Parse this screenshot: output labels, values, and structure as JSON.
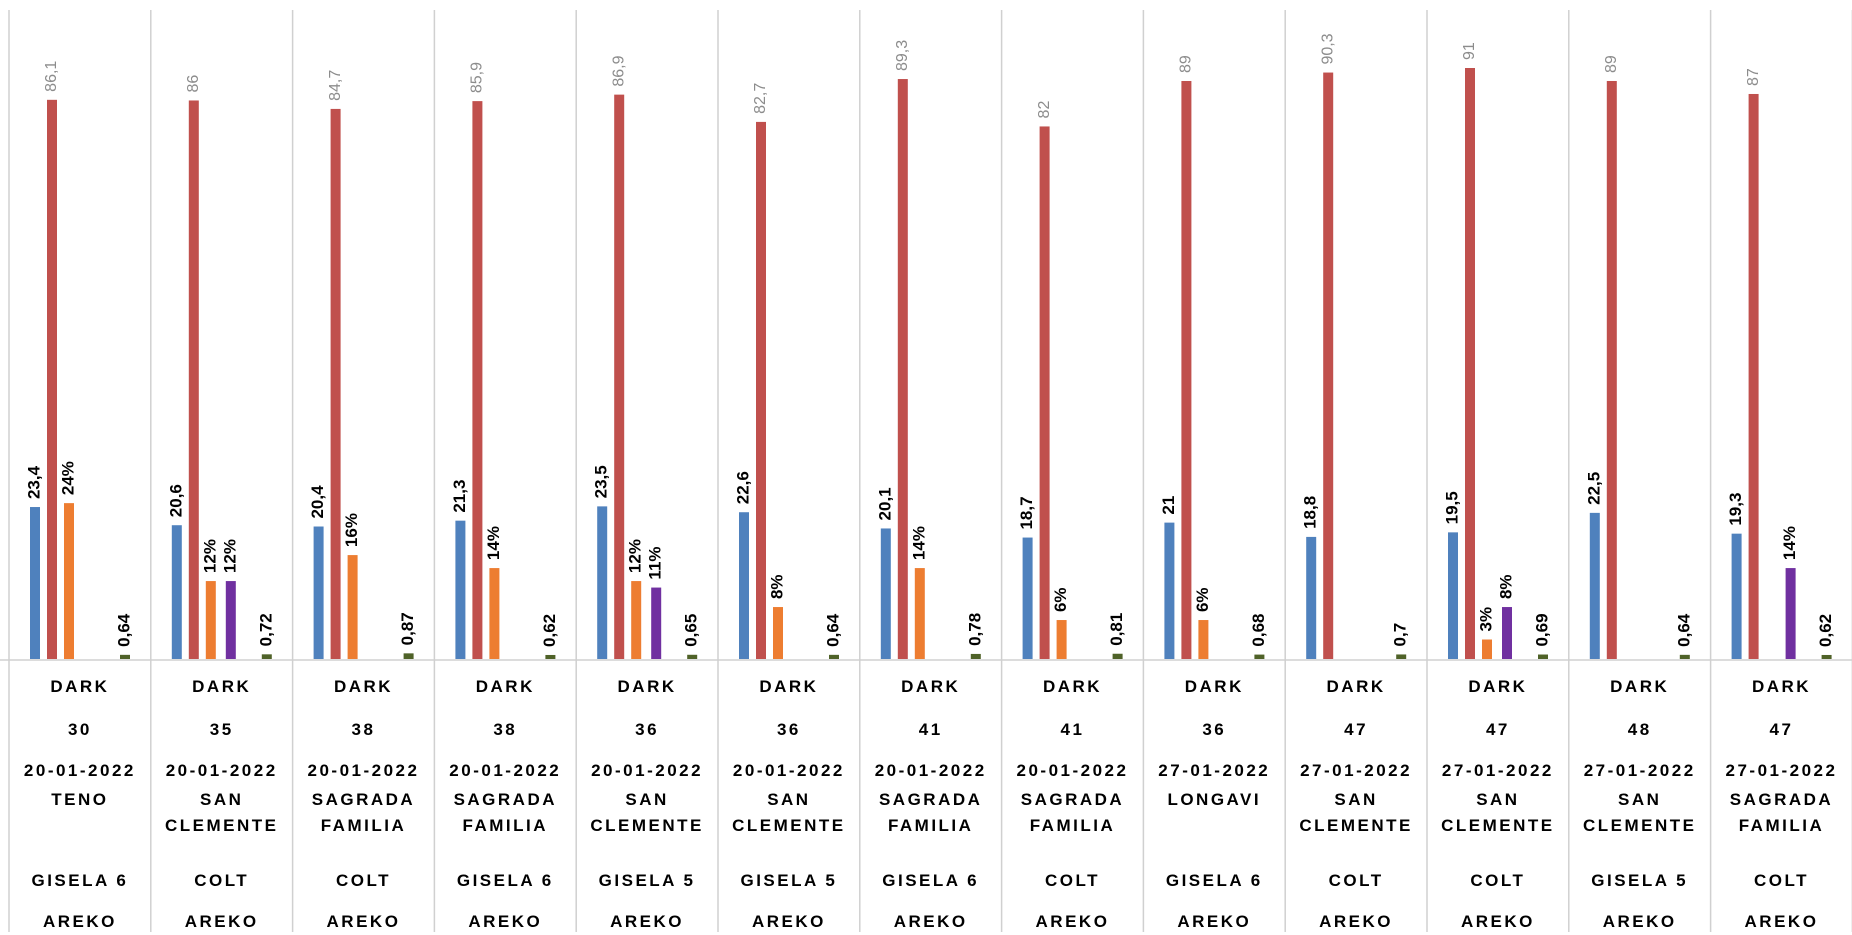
{
  "chart_data": {
    "type": "bar",
    "category_levels": [
      [
        "DARK",
        "DARK",
        "DARK",
        "DARK",
        "DARK",
        "DARK",
        "DARK",
        "DARK",
        "DARK",
        "DARK",
        "DARK",
        "DARK",
        "DARK"
      ],
      [
        "30",
        "35",
        "38",
        "38",
        "36",
        "36",
        "41",
        "41",
        "36",
        "47",
        "47",
        "48",
        "47"
      ],
      [
        "20-01-2022",
        "20-01-2022",
        "20-01-2022",
        "20-01-2022",
        "20-01-2022",
        "20-01-2022",
        "20-01-2022",
        "20-01-2022",
        "27-01-2022",
        "27-01-2022",
        "27-01-2022",
        "27-01-2022",
        "27-01-2022"
      ],
      [
        "TENO",
        "SAN CLEMENTE",
        "SAGRADA FAMILIA",
        "SAGRADA FAMILIA",
        "SAN CLEMENTE",
        "SAN CLEMENTE",
        "SAGRADA FAMILIA",
        "SAGRADA FAMILIA",
        "LONGAVI",
        "SAN CLEMENTE",
        "SAN CLEMENTE",
        "SAN CLEMENTE",
        "SAGRADA FAMILIA"
      ],
      [
        "GISELA 6",
        "COLT",
        "COLT",
        "GISELA 6",
        "GISELA 5",
        "GISELA 5",
        "GISELA 6",
        "COLT",
        "GISELA 6",
        "COLT",
        "COLT",
        "GISELA 5",
        "COLT"
      ],
      [
        "AREKO",
        "AREKO",
        "AREKO",
        "AREKO",
        "AREKO",
        "AREKO",
        "AREKO",
        "AREKO",
        "AREKO",
        "AREKO",
        "AREKO",
        "AREKO",
        "AREKO"
      ]
    ],
    "series": [
      {
        "color": "#4f81bd",
        "label_color": "#000000",
        "values": [
          23.4,
          20.6,
          20.4,
          21.3,
          23.5,
          22.6,
          20.1,
          18.7,
          21,
          18.8,
          19.5,
          22.5,
          19.3
        ],
        "value_labels": [
          "23,4",
          "20,6",
          "20,4",
          "21,3",
          "23,5",
          "22,6",
          "20,1",
          "18,7",
          "21",
          "18,8",
          "19,5",
          "22,5",
          "19,3"
        ]
      },
      {
        "color": "#c0504d",
        "label_color": "#8c8c8c",
        "values": [
          86.1,
          86,
          84.7,
          85.9,
          86.9,
          82.7,
          89.3,
          82,
          89,
          90.3,
          91,
          89,
          87
        ],
        "value_labels": [
          "86,1",
          "86",
          "84,7",
          "85,9",
          "86,9",
          "82,7",
          "89,3",
          "82",
          "89",
          "90,3",
          "91",
          "89",
          "87"
        ]
      },
      {
        "color": "#ed7d31",
        "label_color": "#000000",
        "values": [
          24,
          12,
          16,
          14,
          12,
          8,
          14,
          6,
          6,
          null,
          3,
          null,
          null
        ],
        "value_labels": [
          "24%",
          "12%",
          "16%",
          "14%",
          "12%",
          "8%",
          "14%",
          "6%",
          "6%",
          null,
          "3%",
          null,
          null
        ]
      },
      {
        "color": "#7030a0",
        "label_color": "#000000",
        "values": [
          null,
          12,
          null,
          null,
          11,
          null,
          null,
          null,
          null,
          null,
          8,
          null,
          14
        ],
        "value_labels": [
          null,
          "12%",
          null,
          null,
          "11%",
          null,
          null,
          null,
          null,
          null,
          "8%",
          null,
          "14%"
        ]
      },
      {
        "color": "#4f6228",
        "label_color": "#000000",
        "values": [
          0.64,
          0.72,
          0.87,
          0.62,
          0.65,
          0.64,
          0.78,
          0.81,
          0.68,
          0.7,
          0.69,
          0.64,
          0.62
        ],
        "value_labels": [
          "0,64",
          "0,72",
          "0,87",
          "0,62",
          "0,65",
          "0,64",
          "0,78",
          "0,81",
          "0,68",
          "0,7",
          "0,69",
          "0,64",
          "0,62"
        ]
      }
    ]
  }
}
